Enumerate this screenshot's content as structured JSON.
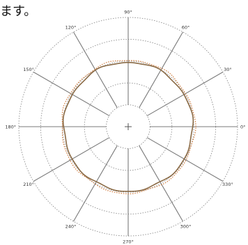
{
  "header_text": "ます。",
  "chart_data": {
    "type": "polar-line",
    "angle_labels": [
      "0°",
      "30°",
      "60°",
      "90°",
      "120°",
      "150°",
      "180°",
      "210°",
      "240°",
      "270°",
      "300°",
      "330°"
    ],
    "rlim": [
      0,
      5
    ],
    "ring_count": 5,
    "grid": true,
    "center_marker": "+",
    "series": [
      {
        "style": "solid",
        "color": "#8a6a45",
        "r": 2.95
      },
      {
        "style": "dotted",
        "color": "#d07a3a",
        "r": 3.05
      }
    ]
  }
}
